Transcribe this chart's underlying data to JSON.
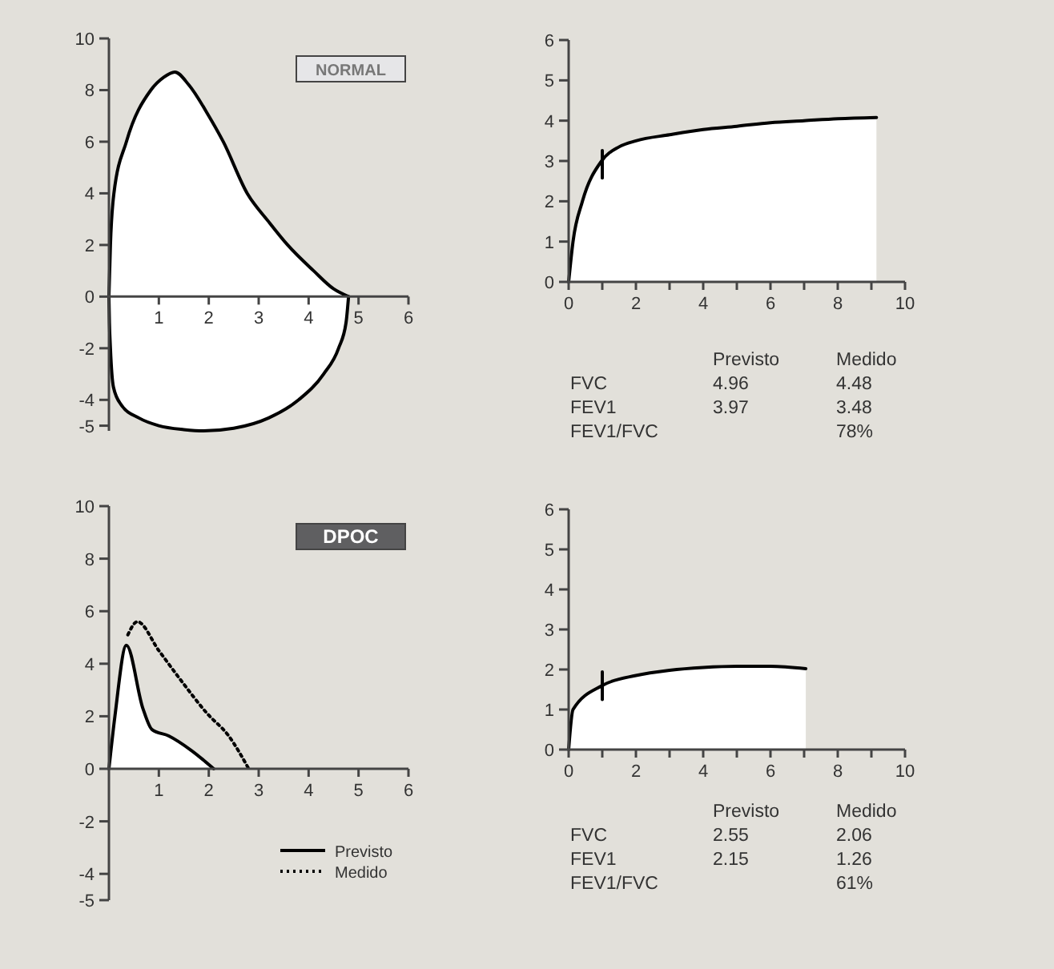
{
  "chart_data": [
    {
      "type": "area",
      "title": "NORMAL",
      "xlim": [
        0,
        6
      ],
      "ylim": [
        -5.2,
        10
      ],
      "xticks": [
        1,
        2,
        3,
        4,
        5,
        6
      ],
      "yticks": [
        10,
        8,
        6,
        4,
        2,
        0,
        -2,
        -4,
        -5
      ],
      "series": [
        {
          "color": "#000000",
          "x": [
            0,
            0.03,
            0.1,
            0.35,
            0.84,
            1.1,
            1.32,
            1.6,
            2.0,
            2.29,
            2.77,
            3.2,
            3.58,
            4.1,
            4.5,
            4.8
          ],
          "values": [
            0,
            2,
            4,
            6,
            8,
            8.5,
            8.7,
            8.2,
            7.0,
            6,
            4,
            2.9,
            2,
            1,
            0.3,
            0
          ]
        },
        {
          "color": "#000000",
          "x": [
            0,
            0.01,
            0.03,
            0.09,
            0.25,
            0.6,
            1.0,
            1.5,
            1.9,
            2.5,
            3.2,
            3.8,
            4.3,
            4.6,
            4.75,
            4.8
          ],
          "values": [
            0,
            -1,
            -2,
            -3.5,
            -4.2,
            -4.7,
            -5.0,
            -5.15,
            -5.2,
            -5.1,
            -4.7,
            -4,
            -3,
            -2,
            -1,
            0
          ]
        }
      ]
    },
    {
      "type": "area",
      "xlim": [
        0,
        10
      ],
      "ylim": [
        0,
        6
      ],
      "xticks": [
        0,
        {
          "value": 1,
          "label": null
        },
        2,
        {
          "value": 3,
          "label": null
        },
        4,
        {
          "value": 5,
          "label": null
        },
        6,
        {
          "value": 7,
          "label": null
        },
        8,
        {
          "value": 9,
          "label": null
        },
        10
      ],
      "yticks": [
        0,
        1,
        2,
        3,
        4,
        5,
        6
      ],
      "series": [
        {
          "color": "#000000",
          "x": [
            0,
            0.13,
            0.41,
            0.98,
            1.5,
            2,
            3,
            4,
            5,
            6,
            7,
            8,
            9.15
          ],
          "values": [
            0,
            1,
            2,
            3,
            3.35,
            3.5,
            3.65,
            3.78,
            3.86,
            3.95,
            4.0,
            4.05,
            4.08
          ]
        },
        {
          "type": "line",
          "color": "#000000",
          "x": [
            1,
            1
          ],
          "values": [
            2.58,
            3.26
          ]
        }
      ]
    },
    {
      "type": "other",
      "categories": [
        "Previsto",
        "Medido"
      ],
      "y_categories": [
        "FVC",
        "FEV1",
        "FEV1/FVC"
      ],
      "cell_labels": [
        [
          "4.96",
          "4.48"
        ],
        [
          "3.97",
          "3.48"
        ],
        [
          null,
          "78%"
        ]
      ]
    },
    {
      "type": "area",
      "title": "DPOC",
      "xlim": [
        0,
        6
      ],
      "ylim": [
        -5,
        10
      ],
      "xticks": [
        1,
        2,
        3,
        4,
        5,
        6
      ],
      "yticks": [
        10,
        8,
        6,
        4,
        2,
        0,
        -2,
        -4,
        -5
      ],
      "legend": "bottom right",
      "series": [
        {
          "name": "Previsto",
          "color": "#000000",
          "line_style": "solid",
          "x": [
            0,
            0.12,
            0.35,
            0.68,
            0.86,
            1.2,
            1.65,
            2.1
          ],
          "values": [
            0,
            2,
            4.7,
            2.3,
            1.5,
            1.25,
            0.7,
            0
          ]
        },
        {
          "name": "Medido",
          "type": "line",
          "color": "#000000",
          "line_style": "dotted",
          "x": [
            0.38,
            0.57,
            1.0,
            1.43,
            1.97,
            2.4,
            2.8
          ],
          "values": [
            5.1,
            5.6,
            4.5,
            3.4,
            2.1,
            1.25,
            0
          ]
        }
      ]
    },
    {
      "type": "area",
      "xlim": [
        0,
        10
      ],
      "ylim": [
        0,
        6
      ],
      "xticks": [
        0,
        {
          "value": 1,
          "label": null
        },
        2,
        {
          "value": 3,
          "label": null
        },
        4,
        {
          "value": 5,
          "label": null
        },
        6,
        {
          "value": 7,
          "label": null
        },
        8,
        {
          "value": 9,
          "label": null
        },
        10
      ],
      "yticks": [
        0,
        1,
        2,
        3,
        4,
        5,
        6
      ],
      "series": [
        {
          "color": "#000000",
          "x": [
            0,
            0.13,
            1,
            2,
            3,
            4,
            5,
            6,
            7.05
          ],
          "values": [
            0,
            1,
            1.6,
            1.85,
            1.98,
            2.05,
            2.08,
            2.08,
            2.02
          ]
        },
        {
          "type": "line",
          "color": "#000000",
          "x": [
            1,
            1
          ],
          "values": [
            1.25,
            1.94
          ]
        }
      ]
    },
    {
      "type": "other",
      "categories": [
        "Previsto",
        "Medido"
      ],
      "y_categories": [
        "FVC",
        "FEV1",
        "FEV1/FVC"
      ],
      "cell_labels": [
        [
          "2.55",
          "2.06"
        ],
        [
          "2.15",
          "1.26"
        ],
        [
          null,
          "61%"
        ]
      ]
    }
  ]
}
